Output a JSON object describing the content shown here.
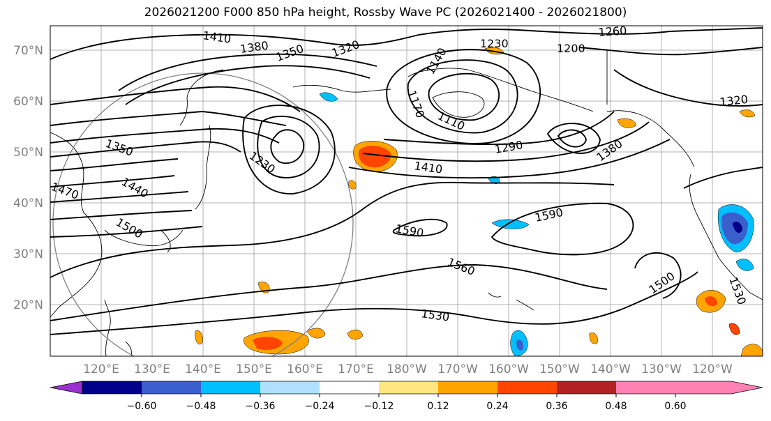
{
  "title": "2026021200 F000 850 hPa height, Rossby Wave PC (2026021400 - 2026021800)",
  "map": {
    "lat_labels": [
      "70°N",
      "60°N",
      "50°N",
      "40°N",
      "30°N",
      "20°N"
    ],
    "lon_labels": [
      "120°E",
      "130°E",
      "140°E",
      "150°E",
      "160°E",
      "170°E",
      "180°W",
      "170°W",
      "160°W",
      "150°W",
      "140°W",
      "130°W",
      "120°W"
    ],
    "contour_labels": [
      "1410",
      "1380",
      "1350",
      "1320",
      "1230",
      "1260",
      "1200",
      "1170",
      "1110",
      "1140",
      "1290",
      "1380",
      "1320",
      "1350",
      "1230",
      "1440",
      "1470",
      "1500",
      "1410",
      "1590",
      "1590",
      "1560",
      "1530",
      "1500",
      "1530"
    ]
  },
  "colorbar": {
    "ticks": [
      "−0.60",
      "−0.48",
      "−0.36",
      "−0.24",
      "−0.12",
      "0.12",
      "0.24",
      "0.36",
      "0.48",
      "0.60"
    ],
    "colors": [
      "#9b30d0",
      "#00008b",
      "#3a5fcd",
      "#00bfff",
      "#b0e0ff",
      "#ffffff",
      "#ffe680",
      "#ffa500",
      "#ff4500",
      "#b22222",
      "#ff82b4"
    ]
  }
}
